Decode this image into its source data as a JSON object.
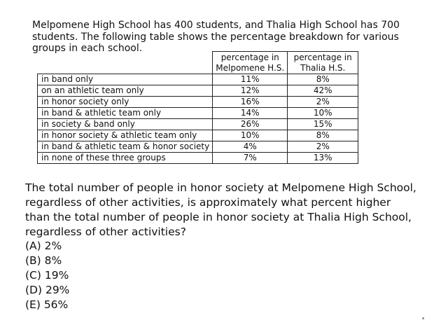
{
  "intro": "Melpomene High School has 400 students, and Thalia High School has 700 students.  The following table shows the percentage breakdown for various groups in each school.",
  "table": {
    "headers": [
      "percentage in Melpomene H.S.",
      "percentage in Thalia H.S."
    ],
    "rows": [
      {
        "label": "in band only",
        "melpomene": "11%",
        "thalia": "8%"
      },
      {
        "label": "on an athletic team only",
        "melpomene": "12%",
        "thalia": "42%"
      },
      {
        "label": "in honor society only",
        "melpomene": "16%",
        "thalia": "2%"
      },
      {
        "label": "in band & athletic team only",
        "melpomene": "14%",
        "thalia": "10%"
      },
      {
        "label": "in society & band only",
        "melpomene": "26%",
        "thalia": "15%"
      },
      {
        "label": "in honor society & athletic team only",
        "melpomene": "10%",
        "thalia": "8%"
      },
      {
        "label": "in band & athletic team & honor society",
        "melpomene": "4%",
        "thalia": "2%"
      },
      {
        "label": "in none of these three groups",
        "melpomene": "7%",
        "thalia": "13%"
      }
    ]
  },
  "question": "The total number of people in honor society at Melpomene High School, regardless of other activities, is approximately what percent higher than the total number of people in honor society at Thalia High School, regardless of other activities?",
  "choices": [
    "(A) 2%",
    "(B) 8%",
    "(C) 19%",
    "(D) 29%",
    "(E) 56%"
  ]
}
